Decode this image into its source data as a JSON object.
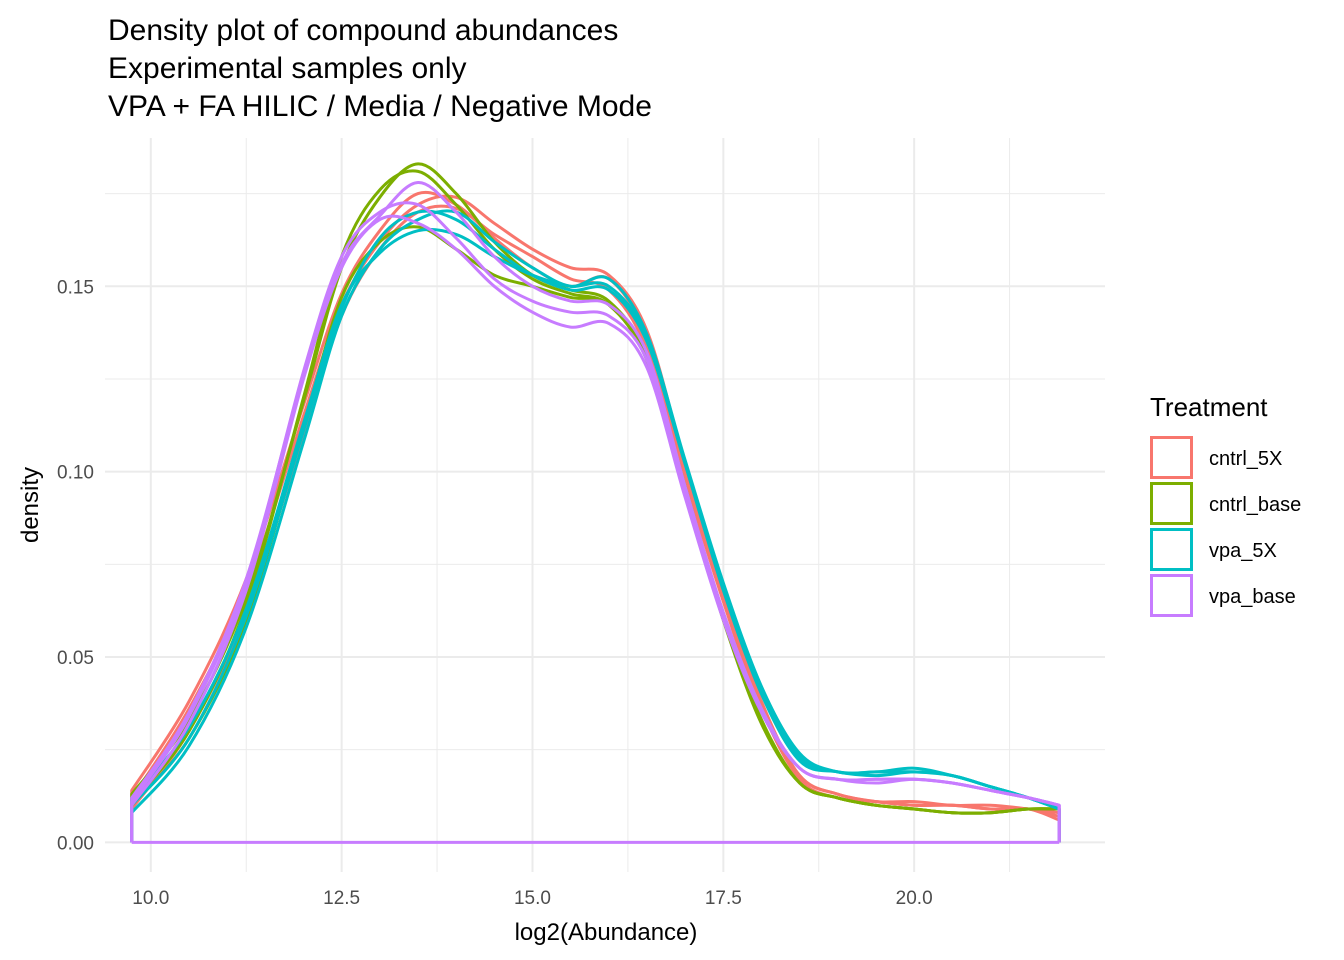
{
  "title_lines": [
    "Density plot of compound abundances",
    "Experimental samples only",
    "VPA + FA HILIC / Media / Negative Mode"
  ],
  "chart_data": {
    "type": "line",
    "subtype": "density",
    "title": "Density plot of compound abundances\nExperimental samples only\nVPA + FA HILIC / Media / Negative Mode",
    "xlabel": "log2(Abundance)",
    "ylabel": "density",
    "xlim": [
      9.4,
      22.5
    ],
    "ylim": [
      -0.008,
      0.19
    ],
    "x_ticks": [
      10.0,
      12.5,
      15.0,
      17.5,
      20.0
    ],
    "x_tick_labels": [
      "10.0",
      "12.5",
      "15.0",
      "17.5",
      "20.0"
    ],
    "y_ticks": [
      0.0,
      0.05,
      0.1,
      0.15
    ],
    "y_tick_labels": [
      "0.00",
      "0.05",
      "0.10",
      "0.15"
    ],
    "grid": true,
    "legend": {
      "title": "Treatment",
      "position": "right"
    },
    "groups": [
      {
        "name": "cntrl_5X",
        "color": "#F8766D"
      },
      {
        "name": "cntrl_base",
        "color": "#7CAE00"
      },
      {
        "name": "vpa_5X",
        "color": "#00BFC4"
      },
      {
        "name": "vpa_base",
        "color": "#C77CFF"
      }
    ],
    "x": [
      9.75,
      10.5,
      11.25,
      12.0,
      12.5,
      13.0,
      13.5,
      14.0,
      14.5,
      15.0,
      15.5,
      16.0,
      16.5,
      17.0,
      17.5,
      18.0,
      18.5,
      19.0,
      19.5,
      20.0,
      20.5,
      21.0,
      21.5,
      21.9
    ],
    "series": [
      {
        "name": "cntrl_5X",
        "group": "cntrl_5X",
        "values": [
          0.012,
          0.036,
          0.068,
          0.115,
          0.145,
          0.162,
          0.172,
          0.174,
          0.167,
          0.16,
          0.155,
          0.153,
          0.138,
          0.102,
          0.068,
          0.038,
          0.018,
          0.013,
          0.011,
          0.01,
          0.01,
          0.009,
          0.009,
          0.007
        ]
      },
      {
        "name": "cntrl_5X",
        "group": "cntrl_5X",
        "values": [
          0.009,
          0.03,
          0.062,
          0.11,
          0.142,
          0.16,
          0.17,
          0.171,
          0.164,
          0.158,
          0.152,
          0.149,
          0.133,
          0.098,
          0.065,
          0.036,
          0.017,
          0.012,
          0.011,
          0.01,
          0.01,
          0.009,
          0.009,
          0.006
        ]
      },
      {
        "name": "cntrl_5X",
        "group": "cntrl_5X",
        "values": [
          0.014,
          0.038,
          0.071,
          0.118,
          0.148,
          0.165,
          0.175,
          0.172,
          0.163,
          0.155,
          0.15,
          0.152,
          0.136,
          0.1,
          0.066,
          0.037,
          0.018,
          0.013,
          0.011,
          0.011,
          0.01,
          0.01,
          0.009,
          0.008
        ]
      },
      {
        "name": "cntrl_base",
        "group": "cntrl_base",
        "values": [
          0.011,
          0.03,
          0.064,
          0.12,
          0.158,
          0.176,
          0.181,
          0.172,
          0.16,
          0.152,
          0.148,
          0.145,
          0.13,
          0.095,
          0.06,
          0.032,
          0.016,
          0.012,
          0.01,
          0.009,
          0.008,
          0.008,
          0.009,
          0.009
        ]
      },
      {
        "name": "cntrl_base",
        "group": "cntrl_base",
        "values": [
          0.013,
          0.033,
          0.066,
          0.119,
          0.155,
          0.174,
          0.183,
          0.175,
          0.162,
          0.153,
          0.149,
          0.146,
          0.131,
          0.096,
          0.061,
          0.033,
          0.016,
          0.012,
          0.01,
          0.009,
          0.008,
          0.008,
          0.009,
          0.009
        ]
      },
      {
        "name": "cntrl_base",
        "group": "cntrl_base",
        "values": [
          0.01,
          0.028,
          0.06,
          0.112,
          0.147,
          0.162,
          0.166,
          0.16,
          0.153,
          0.15,
          0.147,
          0.145,
          0.13,
          0.095,
          0.06,
          0.033,
          0.016,
          0.012,
          0.01,
          0.009,
          0.008,
          0.008,
          0.009,
          0.009
        ]
      },
      {
        "name": "vpa_5X",
        "group": "vpa_5X",
        "values": [
          0.008,
          0.026,
          0.058,
          0.108,
          0.142,
          0.16,
          0.168,
          0.17,
          0.162,
          0.155,
          0.15,
          0.152,
          0.137,
          0.103,
          0.07,
          0.042,
          0.024,
          0.019,
          0.019,
          0.019,
          0.018,
          0.015,
          0.012,
          0.009
        ]
      },
      {
        "name": "vpa_5X",
        "group": "vpa_5X",
        "values": [
          0.01,
          0.028,
          0.061,
          0.111,
          0.144,
          0.163,
          0.17,
          0.168,
          0.16,
          0.153,
          0.149,
          0.149,
          0.135,
          0.102,
          0.069,
          0.041,
          0.023,
          0.019,
          0.019,
          0.02,
          0.018,
          0.015,
          0.012,
          0.009
        ]
      },
      {
        "name": "vpa_5X",
        "group": "vpa_5X",
        "values": [
          0.012,
          0.031,
          0.063,
          0.113,
          0.145,
          0.159,
          0.165,
          0.164,
          0.158,
          0.153,
          0.15,
          0.15,
          0.136,
          0.102,
          0.068,
          0.04,
          0.022,
          0.019,
          0.018,
          0.019,
          0.018,
          0.015,
          0.012,
          0.009
        ]
      },
      {
        "name": "vpa_base",
        "group": "vpa_base",
        "values": [
          0.01,
          0.032,
          0.068,
          0.125,
          0.155,
          0.168,
          0.167,
          0.16,
          0.15,
          0.143,
          0.139,
          0.14,
          0.128,
          0.093,
          0.06,
          0.035,
          0.02,
          0.017,
          0.017,
          0.017,
          0.016,
          0.014,
          0.012,
          0.01
        ]
      },
      {
        "name": "vpa_base",
        "group": "vpa_base",
        "values": [
          0.011,
          0.034,
          0.07,
          0.127,
          0.158,
          0.17,
          0.172,
          0.163,
          0.152,
          0.146,
          0.143,
          0.142,
          0.13,
          0.095,
          0.062,
          0.036,
          0.02,
          0.017,
          0.017,
          0.017,
          0.016,
          0.014,
          0.012,
          0.01
        ]
      },
      {
        "name": "vpa_base",
        "group": "vpa_base",
        "values": [
          0.012,
          0.035,
          0.071,
          0.126,
          0.156,
          0.169,
          0.178,
          0.17,
          0.158,
          0.15,
          0.146,
          0.145,
          0.132,
          0.096,
          0.062,
          0.036,
          0.02,
          0.017,
          0.016,
          0.017,
          0.016,
          0.014,
          0.012,
          0.01
        ]
      }
    ]
  }
}
